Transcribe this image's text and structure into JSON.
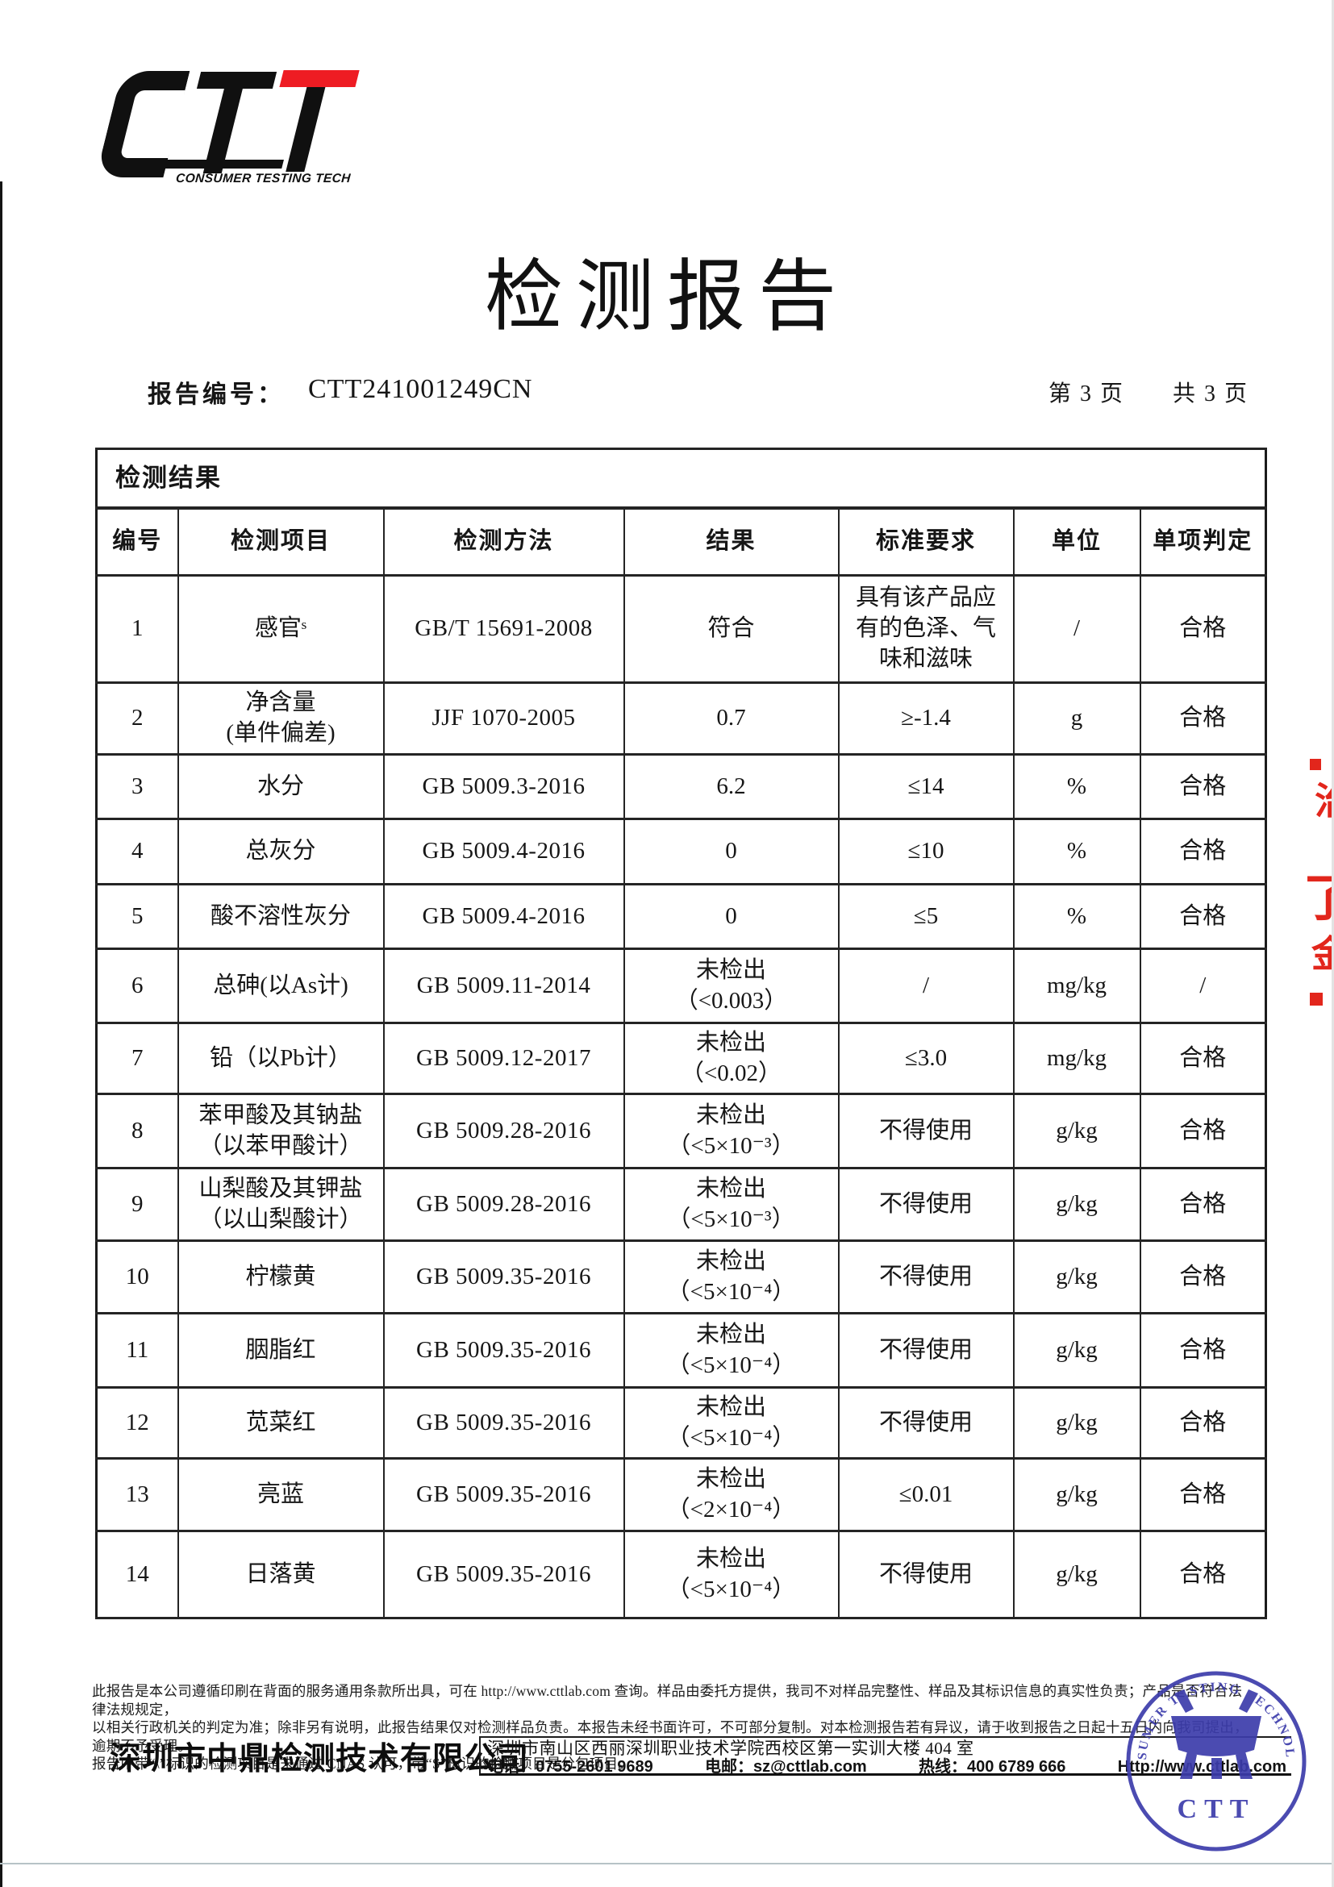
{
  "logo": {
    "text": "CTT",
    "subtitle": "CONSUMER TESTING TECH",
    "red": "#ee1c23"
  },
  "title": "检测报告",
  "meta": {
    "report_no_label": "报告编号：",
    "report_no": "CTT241001249CN",
    "page_info": "第 3 页　　共 3 页"
  },
  "table": {
    "section_title": "检测结果",
    "columns": [
      "编号",
      "检测项目",
      "检测方法",
      "结果",
      "标准要求",
      "单位",
      "单项判定"
    ],
    "rows": [
      {
        "no": "1",
        "item": "感官ˢ",
        "method": "GB/T 15691-2008",
        "result": "符合",
        "standard": "具有该产品应\n有的色泽、气\n味和滋味",
        "unit": "/",
        "judgment": "合格"
      },
      {
        "no": "2",
        "item": "净含量\n(单件偏差)",
        "method": "JJF 1070-2005",
        "result": "0.7",
        "standard": "≥-1.4",
        "unit": "g",
        "judgment": "合格"
      },
      {
        "no": "3",
        "item": "水分",
        "method": "GB 5009.3-2016",
        "result": "6.2",
        "standard": "≤14",
        "unit": "%",
        "judgment": "合格"
      },
      {
        "no": "4",
        "item": "总灰分",
        "method": "GB 5009.4-2016",
        "result": "0",
        "standard": "≤10",
        "unit": "%",
        "judgment": "合格"
      },
      {
        "no": "5",
        "item": "酸不溶性灰分",
        "method": "GB 5009.4-2016",
        "result": "0",
        "standard": "≤5",
        "unit": "%",
        "judgment": "合格"
      },
      {
        "no": "6",
        "item": "总砷(以As计)",
        "method": "GB 5009.11-2014",
        "result": "未检出\n（<0.003）",
        "standard": "/",
        "unit": "mg/kg",
        "judgment": "/"
      },
      {
        "no": "7",
        "item": "铅（以Pb计）",
        "method": "GB 5009.12-2017",
        "result": "未检出\n（<0.02）",
        "standard": "≤3.0",
        "unit": "mg/kg",
        "judgment": "合格"
      },
      {
        "no": "8",
        "item": "苯甲酸及其钠盐\n（以苯甲酸计）",
        "method": "GB 5009.28-2016",
        "result": "未检出\n（<5×10⁻³）",
        "standard": "不得使用",
        "unit": "g/kg",
        "judgment": "合格"
      },
      {
        "no": "9",
        "item": "山梨酸及其钾盐\n（以山梨酸计）",
        "method": "GB 5009.28-2016",
        "result": "未检出\n（<5×10⁻³）",
        "standard": "不得使用",
        "unit": "g/kg",
        "judgment": "合格"
      },
      {
        "no": "10",
        "item": "柠檬黄",
        "method": "GB 5009.35-2016",
        "result": "未检出\n（<5×10⁻⁴）",
        "standard": "不得使用",
        "unit": "g/kg",
        "judgment": "合格"
      },
      {
        "no": "11",
        "item": "胭脂红",
        "method": "GB 5009.35-2016",
        "result": "未检出\n（<5×10⁻⁴）",
        "standard": "不得使用",
        "unit": "g/kg",
        "judgment": "合格"
      },
      {
        "no": "12",
        "item": "苋菜红",
        "method": "GB 5009.35-2016",
        "result": "未检出\n（<5×10⁻⁴）",
        "standard": "不得使用",
        "unit": "g/kg",
        "judgment": "合格"
      },
      {
        "no": "13",
        "item": "亮蓝",
        "method": "GB 5009.35-2016",
        "result": "未检出\n（<2×10⁻⁴）",
        "standard": "≤0.01",
        "unit": "g/kg",
        "judgment": "合格"
      },
      {
        "no": "14",
        "item": "日落黄",
        "method": "GB 5009.35-2016",
        "result": "未检出\n（<5×10⁻⁴）",
        "standard": "不得使用",
        "unit": "g/kg",
        "judgment": "合格"
      }
    ]
  },
  "footer": {
    "disclaimer_lines": [
      "此报告是本公司遵循印刷在背面的服务通用条款所出具，可在 http://www.cttlab.com 查询。样品由委托方提供，我司不对样品完整性、样品及其标识信息的真实性负责；产品是否符合法律法规规定，",
      "以相关行政机关的判定为准；除非另有说明，此报告结果仅对检测样品负责。本报告未经书面许可，不可部分复制。对本检测报告若有异议，请于收到报告之日起十五日内向我司提出，逾期不予受理。",
      "报告中带“\\”标识的检测项目是未通过 CNAS 认可，带“S”标识的检测项目是分包项目。"
    ],
    "company": "深圳市中鼎检测技术有限公司",
    "address": "深圳市南山区西丽深圳职业技术学院西校区第一实训大楼 404 室",
    "contacts": {
      "phone": "电话：0755-2601 9689",
      "email": "电邮：sz@cttlab.com",
      "hotline": "热线：400 6789 666",
      "website": "Http://www.cttlab.com"
    }
  },
  "stamp": {
    "ring_text": "CONSUMER TESTING TECHNOLOGY",
    "label": "CTT",
    "color": "#3c3cab"
  },
  "artifacts": {
    "red_fragments": [
      "治",
      "了",
      "金"
    ]
  }
}
